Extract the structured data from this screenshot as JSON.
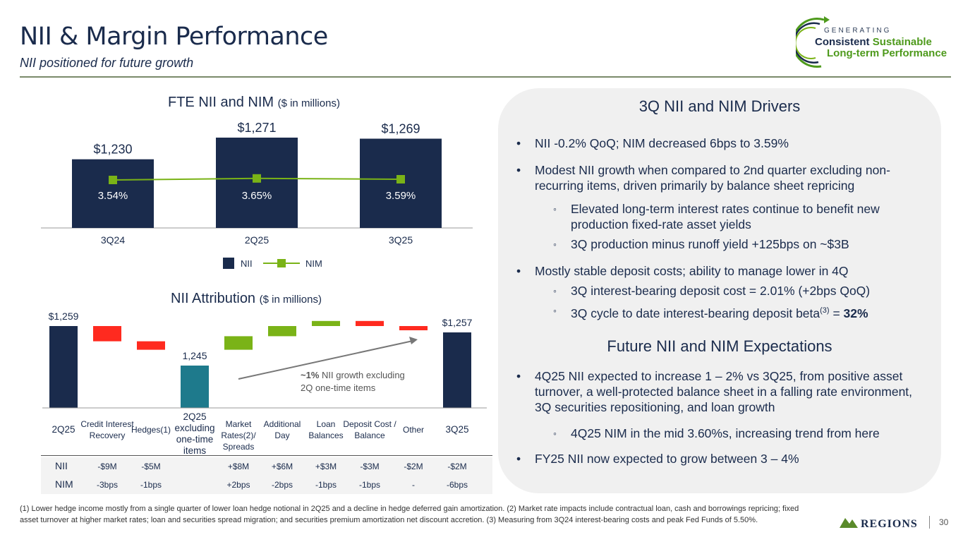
{
  "title": "NII & Margin Performance",
  "subtitle": "NII positioned for future growth",
  "logo": {
    "generating": "GENERATING",
    "consistent": "Consistent",
    "sustainable": "Sustainable",
    "long_term": "Long-term Performance"
  },
  "chart_data": [
    {
      "type": "bar",
      "title": "FTE NII and NIM",
      "title_unit": "($ in millions)",
      "categories": [
        "3Q24",
        "2Q25",
        "3Q25"
      ],
      "series": [
        {
          "name": "NII",
          "type": "bar",
          "values": [
            1230,
            1271,
            1269
          ],
          "labels": [
            "$1,230",
            "$1,271",
            "$1,269"
          ],
          "color": "#1a2b4c"
        },
        {
          "name": "NIM",
          "type": "line",
          "values": [
            3.54,
            3.65,
            3.59
          ],
          "labels": [
            "3.54%",
            "3.65%",
            "3.59%"
          ],
          "color": "#7ab317"
        }
      ],
      "legend": "bottom"
    },
    {
      "type": "bar",
      "subtype": "waterfall",
      "title": "NII Attribution",
      "title_unit": "($ in millions)",
      "categories": [
        "2Q25",
        "Credit Interest Recovery",
        "Hedges(1)",
        "2Q25 excluding one-time items",
        "Market Rates(2)/ Spreads",
        "Additional Day",
        "Loan Balances",
        "Deposit Cost / Balance",
        "Other",
        "3Q25"
      ],
      "values": [
        1259,
        -9,
        -5,
        1245,
        8,
        6,
        3,
        -3,
        -2,
        1257
      ],
      "bar_labels": [
        "$1,259",
        "",
        "",
        "1,245",
        "",
        "",
        "",
        "",
        "",
        "$1,257"
      ],
      "annotation": {
        "bold": "~1%",
        "text": " NII growth excluding",
        "text2": "2Q one-time items"
      },
      "table": {
        "rows": [
          {
            "label": "NII",
            "values": [
              "-$9M",
              "-$5M",
              "",
              "+$8M",
              "+$6M",
              "+$3M",
              "-$3M",
              "-$2M",
              "-$2M"
            ]
          },
          {
            "label": "NIM",
            "values": [
              "-3bps",
              "-1bps",
              "",
              "+2bps",
              "-2bps",
              "-1bps",
              "-1bps",
              "-",
              "-6bps"
            ]
          }
        ]
      },
      "colors": {
        "total": "#1a2b4c",
        "neg": "#ff2a1f",
        "pos": "#7ab317",
        "mid": "#1e7a8c"
      }
    }
  ],
  "panel": {
    "drivers_title": "3Q NII and NIM Drivers",
    "drivers": [
      {
        "level": 1,
        "text": "NII -0.2% QoQ; NIM decreased 6bps to 3.59%"
      },
      {
        "level": 1,
        "text": "Modest NII growth when compared to 2nd quarter excluding non-recurring items, driven primarily by balance sheet repricing"
      },
      {
        "level": 2,
        "text": "Elevated long-term interest rates continue to benefit new production fixed-rate asset yields"
      },
      {
        "level": 2,
        "text": "3Q production minus runoff yield  +125bps on ~$3B"
      },
      {
        "level": 1,
        "text": "Mostly stable deposit costs; ability to manage lower in 4Q"
      },
      {
        "level": 2,
        "text": "3Q interest-bearing deposit cost = 2.01% (+2bps QoQ)"
      },
      {
        "level": 2,
        "text": "3Q cycle to date interest-bearing deposit beta",
        "sup": "(3)",
        "tail": " = ",
        "bold": "32%"
      }
    ],
    "expect_title": "Future NII and NIM Expectations",
    "expect": [
      {
        "level": 1,
        "text": "4Q25 NII expected to increase 1 –  2% vs 3Q25, from positive asset turnover, a well-protected balance sheet in a falling rate environment, 3Q securities repositioning, and loan growth"
      },
      {
        "level": 2,
        "text": "4Q25 NIM in the  mid 3.60%s, increasing trend from here"
      },
      {
        "level": 1,
        "text": "FY25 NII now expected to grow between 3 – 4%"
      }
    ]
  },
  "footnote": "(1) Lower hedge income mostly from a single quarter of lower loan hedge notional in 2Q25 and a decline in hedge deferred gain amortization.  (2) Market rate impacts include contractual loan, cash and borrowings repricing; fixed asset turnover at higher market rates; loan and securities spread migration; and securities premium amortization net discount accretion.  (3) Measuring from 3Q24 interest-bearing costs and peak Fed Funds of 5.50%.",
  "brand": "REGIONS",
  "page_number": "30"
}
